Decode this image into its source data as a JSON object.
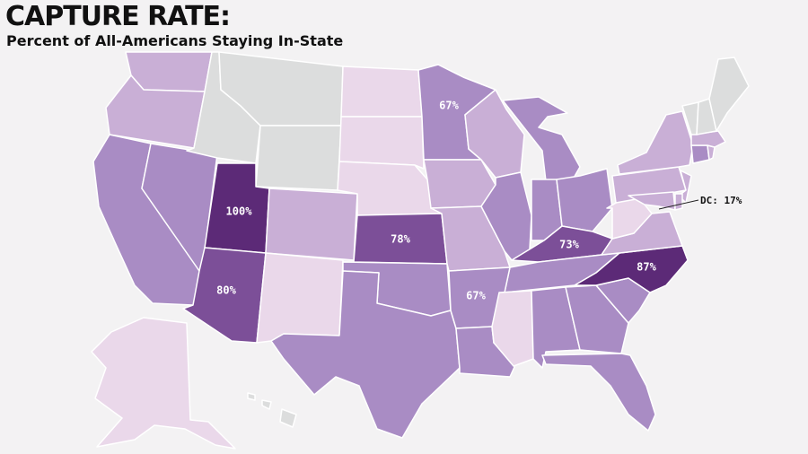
{
  "title": "CAPTURE RATE:",
  "subtitle": "Percent of All-Americans Staying In-State",
  "colors": {
    "background": "#f3f2f3",
    "nodata": "#dcdddd",
    "level1": "#ead8ea",
    "level2": "#c9afd6",
    "level3": "#a98cc4",
    "level4": "#7c4f98",
    "level5": "#5c2a77"
  },
  "labels": {
    "ut": "100%",
    "nc": "87%",
    "az": "80%",
    "ks": "78%",
    "ky": "73%",
    "mn": "67%",
    "ar": "67%",
    "dc": "DC: 17%"
  }
}
